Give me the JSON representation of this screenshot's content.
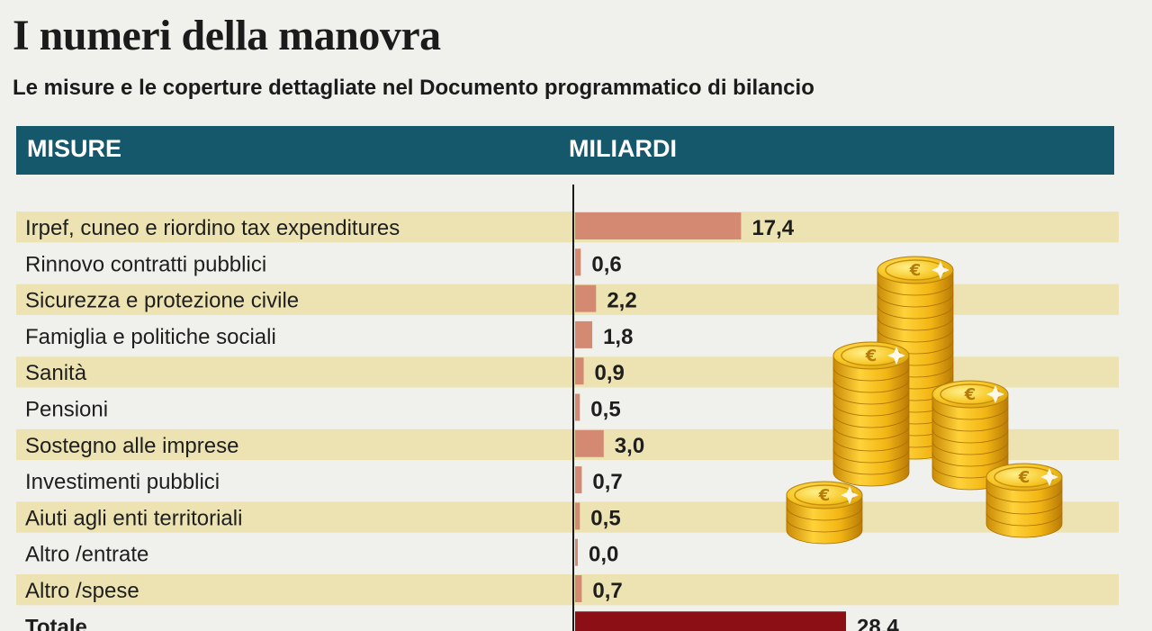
{
  "header": {
    "title": "I numeri della manovra",
    "subtitle": "Le misure e le coperture dettagliate nel Documento programmatico di bilancio",
    "col_measures": "MISURE",
    "col_billions": "MILIARDI"
  },
  "colors": {
    "band": "#16586b",
    "stripe": "#ede3b2",
    "bar": "#d48a72",
    "total_bar": "#8b0f14"
  },
  "chart_data": {
    "type": "bar",
    "orientation": "horizontal",
    "categories": [
      "Irpef, cuneo e riordino tax expenditures",
      "Rinnovo contratti pubblici",
      "Sicurezza e protezione civile",
      "Famiglia e politiche sociali",
      "Sanità",
      "Pensioni",
      "Sostegno alle imprese",
      "Investimenti pubblici",
      "Aiuti agli enti territoriali",
      "Altro /entrate",
      "Altro /spese",
      "Totale"
    ],
    "values": [
      17.4,
      0.6,
      2.2,
      1.8,
      0.9,
      0.5,
      3.0,
      0.7,
      0.5,
      0.0,
      0.7,
      28.4
    ],
    "value_labels": [
      "17,4",
      "0,6",
      "2,2",
      "1,8",
      "0,9",
      "0,5",
      "3,0",
      "0,7",
      "0,5",
      "0,0",
      "0,7",
      "28,4"
    ],
    "xlabel": "MILIARDI",
    "ylabel": "MISURE",
    "legend": "none",
    "grid": false
  },
  "illustration": {
    "icon": "euro-coin-stacks-icon"
  }
}
